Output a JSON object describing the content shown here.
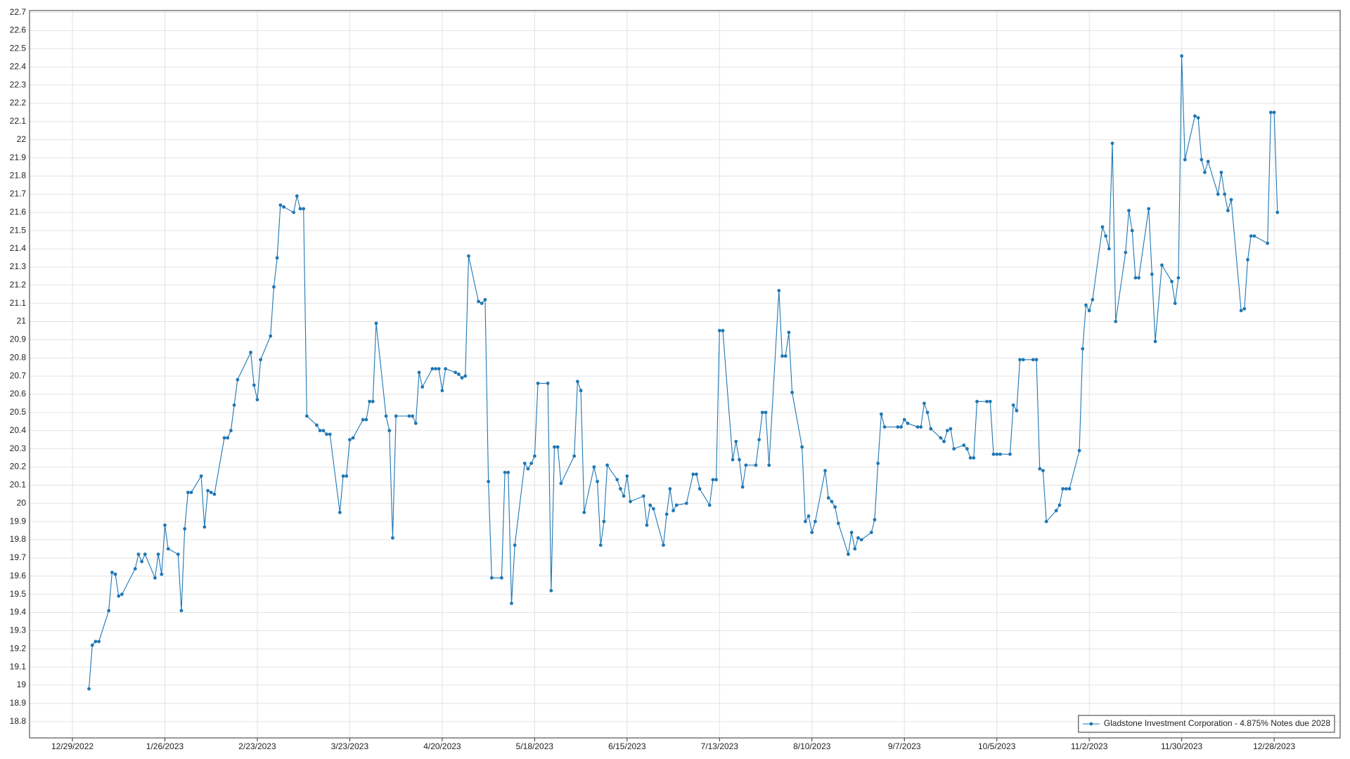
{
  "chart_data": {
    "type": "line",
    "x": [
      "1/3/2023",
      "1/4/2023",
      "1/5/2023",
      "1/6/2023",
      "1/9/2023",
      "1/10/2023",
      "1/11/2023",
      "1/12/2023",
      "1/13/2023",
      "1/17/2023",
      "1/18/2023",
      "1/19/2023",
      "1/20/2023",
      "1/23/2023",
      "1/24/2023",
      "1/25/2023",
      "1/26/2023",
      "1/27/2023",
      "1/30/2023",
      "1/31/2023",
      "2/1/2023",
      "2/2/2023",
      "2/3/2023",
      "2/6/2023",
      "2/7/2023",
      "2/8/2023",
      "2/9/2023",
      "2/10/2023",
      "2/13/2023",
      "2/14/2023",
      "2/15/2023",
      "2/16/2023",
      "2/17/2023",
      "2/21/2023",
      "2/22/2023",
      "2/23/2023",
      "2/24/2023",
      "2/27/2023",
      "2/28/2023",
      "3/1/2023",
      "3/2/2023",
      "3/3/2023",
      "3/6/2023",
      "3/7/2023",
      "3/8/2023",
      "3/9/2023",
      "3/10/2023",
      "3/13/2023",
      "3/14/2023",
      "3/15/2023",
      "3/16/2023",
      "3/17/2023",
      "3/20/2023",
      "3/21/2023",
      "3/22/2023",
      "3/23/2023",
      "3/24/2023",
      "3/27/2023",
      "3/28/2023",
      "3/29/2023",
      "3/30/2023",
      "3/31/2023",
      "4/3/2023",
      "4/4/2023",
      "4/5/2023",
      "4/6/2023",
      "4/10/2023",
      "4/11/2023",
      "4/12/2023",
      "4/13/2023",
      "4/14/2023",
      "4/17/2023",
      "4/18/2023",
      "4/19/2023",
      "4/20/2023",
      "4/21/2023",
      "4/24/2023",
      "4/25/2023",
      "4/26/2023",
      "4/27/2023",
      "4/28/2023",
      "5/1/2023",
      "5/2/2023",
      "5/3/2023",
      "5/4/2023",
      "5/5/2023",
      "5/8/2023",
      "5/9/2023",
      "5/10/2023",
      "5/11/2023",
      "5/12/2023",
      "5/15/2023",
      "5/16/2023",
      "5/17/2023",
      "5/18/2023",
      "5/19/2023",
      "5/22/2023",
      "5/23/2023",
      "5/24/2023",
      "5/25/2023",
      "5/26/2023",
      "5/30/2023",
      "5/31/2023",
      "6/1/2023",
      "6/2/2023",
      "6/5/2023",
      "6/6/2023",
      "6/7/2023",
      "6/8/2023",
      "6/9/2023",
      "6/12/2023",
      "6/13/2023",
      "6/14/2023",
      "6/15/2023",
      "6/16/2023",
      "6/20/2023",
      "6/21/2023",
      "6/22/2023",
      "6/23/2023",
      "6/26/2023",
      "6/27/2023",
      "6/28/2023",
      "6/29/2023",
      "6/30/2023",
      "7/3/2023",
      "7/5/2023",
      "7/6/2023",
      "7/7/2023",
      "7/10/2023",
      "7/11/2023",
      "7/12/2023",
      "7/13/2023",
      "7/14/2023",
      "7/17/2023",
      "7/18/2023",
      "7/19/2023",
      "7/20/2023",
      "7/21/2023",
      "7/24/2023",
      "7/25/2023",
      "7/26/2023",
      "7/27/2023",
      "7/28/2023",
      "7/31/2023",
      "8/1/2023",
      "8/2/2023",
      "8/3/2023",
      "8/4/2023",
      "8/7/2023",
      "8/8/2023",
      "8/9/2023",
      "8/10/2023",
      "8/11/2023",
      "8/14/2023",
      "8/15/2023",
      "8/16/2023",
      "8/17/2023",
      "8/18/2023",
      "8/21/2023",
      "8/22/2023",
      "8/23/2023",
      "8/24/2023",
      "8/25/2023",
      "8/28/2023",
      "8/29/2023",
      "8/30/2023",
      "8/31/2023",
      "9/1/2023",
      "9/5/2023",
      "9/6/2023",
      "9/7/2023",
      "9/8/2023",
      "9/11/2023",
      "9/12/2023",
      "9/13/2023",
      "9/14/2023",
      "9/15/2023",
      "9/18/2023",
      "9/19/2023",
      "9/20/2023",
      "9/21/2023",
      "9/22/2023",
      "9/25/2023",
      "9/26/2023",
      "9/27/2023",
      "9/28/2023",
      "9/29/2023",
      "10/2/2023",
      "10/3/2023",
      "10/4/2023",
      "10/5/2023",
      "10/6/2023",
      "10/9/2023",
      "10/10/2023",
      "10/11/2023",
      "10/12/2023",
      "10/13/2023",
      "10/16/2023",
      "10/17/2023",
      "10/18/2023",
      "10/19/2023",
      "10/20/2023",
      "10/23/2023",
      "10/24/2023",
      "10/25/2023",
      "10/26/2023",
      "10/27/2023",
      "10/30/2023",
      "10/31/2023",
      "11/1/2023",
      "11/2/2023",
      "11/3/2023",
      "11/6/2023",
      "11/7/2023",
      "11/8/2023",
      "11/9/2023",
      "11/10/2023",
      "11/13/2023",
      "11/14/2023",
      "11/15/2023",
      "11/16/2023",
      "11/17/2023",
      "11/20/2023",
      "11/21/2023",
      "11/22/2023",
      "11/24/2023",
      "11/27/2023",
      "11/28/2023",
      "11/29/2023",
      "11/30/2023",
      "12/1/2023",
      "12/4/2023",
      "12/5/2023",
      "12/6/2023",
      "12/7/2023",
      "12/8/2023",
      "12/11/2023",
      "12/12/2023",
      "12/13/2023",
      "12/14/2023",
      "12/15/2023",
      "12/18/2023",
      "12/19/2023",
      "12/20/2023",
      "12/21/2023",
      "12/22/2023",
      "12/26/2023",
      "12/27/2023",
      "12/28/2023",
      "12/29/2023"
    ],
    "series": [
      {
        "name": "Gladstone Investment Corporation - 4.875% Notes due 2028",
        "color": "#1f77b4",
        "values": [
          18.98,
          19.22,
          19.24,
          19.24,
          19.41,
          19.62,
          19.61,
          19.49,
          19.5,
          19.64,
          19.72,
          19.68,
          19.72,
          19.59,
          19.72,
          19.61,
          19.88,
          19.75,
          19.72,
          19.41,
          19.86,
          20.06,
          20.06,
          20.15,
          19.87,
          20.07,
          20.06,
          20.05,
          20.36,
          20.36,
          20.4,
          20.54,
          20.68,
          20.83,
          20.65,
          20.57,
          20.79,
          20.92,
          21.19,
          21.35,
          21.64,
          21.63,
          21.6,
          21.69,
          21.62,
          21.62,
          20.48,
          20.43,
          20.4,
          20.4,
          20.38,
          20.38,
          19.95,
          20.15,
          20.15,
          20.35,
          20.36,
          20.46,
          20.46,
          20.56,
          20.56,
          20.99,
          20.48,
          20.4,
          19.81,
          20.48,
          20.48,
          20.48,
          20.44,
          20.72,
          20.64,
          20.74,
          20.74,
          20.74,
          20.62,
          20.74,
          20.72,
          20.71,
          20.69,
          20.7,
          21.36,
          21.11,
          21.1,
          21.12,
          20.12,
          19.59,
          19.59,
          20.17,
          20.17,
          19.45,
          19.77,
          20.22,
          20.19,
          20.22,
          20.26,
          20.66,
          20.66,
          19.52,
          20.31,
          20.31,
          20.11,
          20.26,
          20.67,
          20.62,
          19.95,
          20.2,
          20.12,
          19.77,
          19.9,
          20.21,
          20.13,
          20.08,
          20.04,
          20.15,
          20.01,
          20.04,
          19.88,
          19.99,
          19.97,
          19.77,
          19.94,
          20.08,
          19.96,
          19.99,
          20.0,
          20.16,
          20.16,
          20.08,
          19.99,
          20.13,
          20.13,
          20.95,
          20.95,
          20.24,
          20.34,
          20.24,
          20.09,
          20.21,
          20.21,
          20.35,
          20.5,
          20.5,
          20.21,
          21.17,
          20.81,
          20.81,
          20.94,
          20.61,
          20.31,
          19.9,
          19.93,
          19.84,
          19.9,
          20.18,
          20.03,
          20.01,
          19.98,
          19.89,
          19.72,
          19.84,
          19.75,
          19.81,
          19.8,
          19.84,
          19.91,
          20.22,
          20.49,
          20.42,
          20.42,
          20.42,
          20.46,
          20.44,
          20.42,
          20.42,
          20.55,
          20.5,
          20.41,
          20.36,
          20.34,
          20.4,
          20.41,
          20.3,
          20.32,
          20.3,
          20.25,
          20.25,
          20.56,
          20.56,
          20.56,
          20.27,
          20.27,
          20.27,
          20.27,
          20.54,
          20.51,
          20.79,
          20.79,
          20.79,
          20.79,
          20.19,
          20.18,
          19.9,
          19.96,
          19.99,
          20.08,
          20.08,
          20.08,
          20.29,
          20.85,
          21.09,
          21.06,
          21.12,
          21.52,
          21.47,
          21.4,
          21.98,
          21.0,
          21.38,
          21.61,
          21.5,
          21.24,
          21.24,
          21.62,
          21.26,
          20.89,
          21.31,
          21.22,
          21.1,
          21.24,
          22.46,
          21.89,
          22.13,
          22.12,
          21.89,
          21.82,
          21.88,
          21.7,
          21.82,
          21.7,
          21.61,
          21.67,
          21.06,
          21.07,
          21.34,
          21.47,
          21.47,
          21.43,
          22.15,
          22.15,
          21.6
        ]
      }
    ],
    "xlim": [
      "12/16/2022",
      "1/17/2024"
    ],
    "xticks": [
      "12/29/2022",
      "1/26/2023",
      "2/23/2023",
      "3/23/2023",
      "4/20/2023",
      "5/18/2023",
      "6/15/2023",
      "7/13/2023",
      "8/10/2023",
      "9/7/2023",
      "10/5/2023",
      "11/2/2023",
      "11/30/2023",
      "12/28/2023"
    ],
    "ylim": [
      18.71,
      22.71
    ],
    "yticks": [
      18.8,
      18.9,
      19,
      19.1,
      19.2,
      19.3,
      19.4,
      19.5,
      19.6,
      19.7,
      19.8,
      19.9,
      20,
      20.1,
      20.2,
      20.3,
      20.4,
      20.5,
      20.6,
      20.7,
      20.8,
      20.9,
      21,
      21.1,
      21.2,
      21.3,
      21.4,
      21.5,
      21.6,
      21.7,
      21.8,
      21.9,
      22,
      22.1,
      22.2,
      22.3,
      22.4,
      22.5,
      22.6,
      22.7
    ],
    "grid": true,
    "legend": "lower right"
  }
}
